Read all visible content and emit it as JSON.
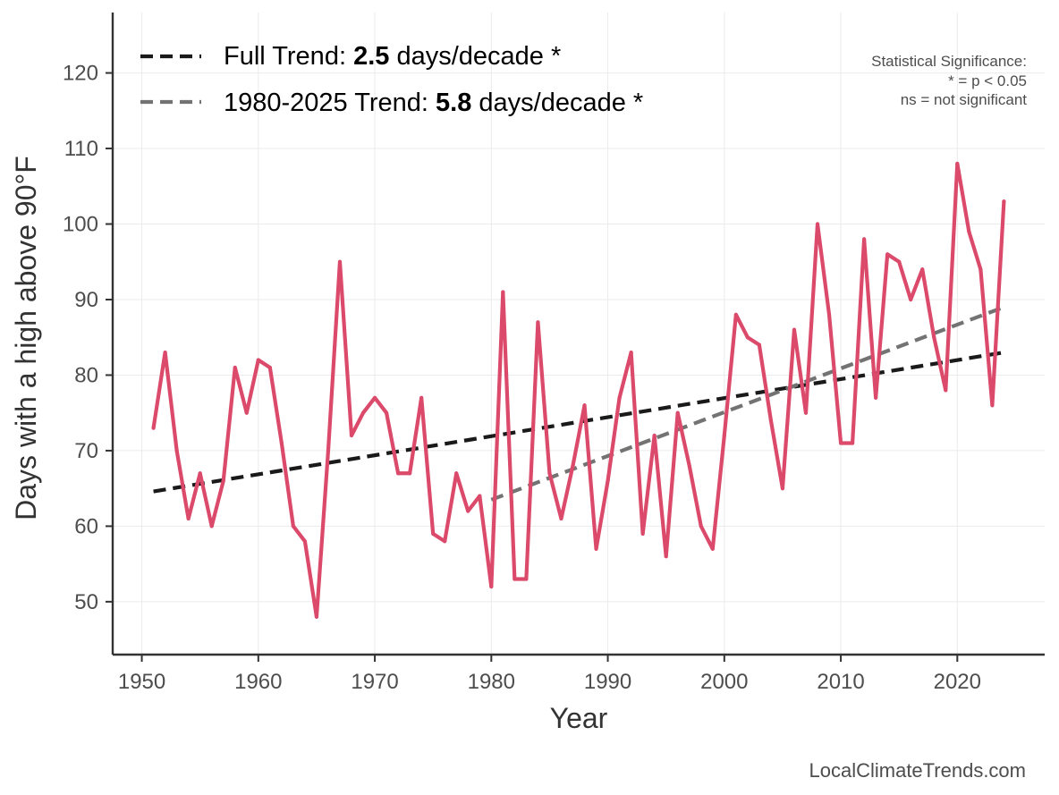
{
  "chart_data": {
    "type": "line",
    "xlabel": "Year",
    "ylabel": "Days with a high above 90°F",
    "xlim": [
      1947.5,
      2027.5
    ],
    "ylim": [
      43,
      128
    ],
    "x_ticks": [
      1950,
      1960,
      1970,
      1980,
      1990,
      2000,
      2010,
      2020
    ],
    "y_ticks": [
      50,
      60,
      70,
      80,
      90,
      100,
      110,
      120
    ],
    "grid": true,
    "legend_position": "top-left",
    "series": [
      {
        "color": "#dc4a6b",
        "x": [
          1951,
          1952,
          1953,
          1954,
          1955,
          1956,
          1957,
          1958,
          1959,
          1960,
          1961,
          1962,
          1963,
          1964,
          1965,
          1966,
          1967,
          1968,
          1969,
          1970,
          1971,
          1972,
          1973,
          1974,
          1975,
          1976,
          1977,
          1978,
          1979,
          1980,
          1981,
          1982,
          1983,
          1984,
          1985,
          1986,
          1987,
          1988,
          1989,
          1990,
          1991,
          1992,
          1993,
          1994,
          1995,
          1996,
          1997,
          1998,
          1999,
          2000,
          2001,
          2002,
          2003,
          2004,
          2005,
          2006,
          2007,
          2008,
          2009,
          2010,
          2011,
          2012,
          2013,
          2014,
          2015,
          2016,
          2017,
          2018,
          2019,
          2020,
          2021,
          2022,
          2023,
          2024
        ],
        "values": [
          73,
          83,
          70,
          61,
          67,
          60,
          66,
          81,
          75,
          82,
          81,
          71,
          60,
          58,
          48,
          70,
          95,
          72,
          75,
          77,
          75,
          67,
          67,
          77,
          59,
          58,
          67,
          62,
          64,
          52,
          91,
          53,
          53,
          87,
          67,
          61,
          68,
          76,
          57,
          66,
          77,
          83,
          59,
          72,
          56,
          75,
          68,
          60,
          57,
          72,
          88,
          85,
          84,
          74,
          65,
          86,
          75,
          100,
          88,
          71,
          71,
          98,
          77,
          96,
          95,
          90,
          94,
          85,
          78,
          108,
          99,
          94,
          76,
          103
        ]
      }
    ],
    "trends": [
      {
        "label_prefix": "Full Trend: ",
        "label_value": "2.5",
        "label_suffix": " days/decade *",
        "color": "#1a1a1a",
        "x": [
          1951,
          2024
        ],
        "values": [
          64.6,
          83.0
        ]
      },
      {
        "label_prefix": "1980-2025 Trend: ",
        "label_value": "5.8",
        "label_suffix": " days/decade *",
        "color": "#737373",
        "x": [
          1980,
          2024
        ],
        "values": [
          63.5,
          89.0
        ]
      }
    ]
  },
  "significance_note": {
    "line1": "Statistical Significance:",
    "line2": "* = p < 0.05",
    "line3": "ns = not significant"
  },
  "credit": "LocalClimateTrends.com"
}
